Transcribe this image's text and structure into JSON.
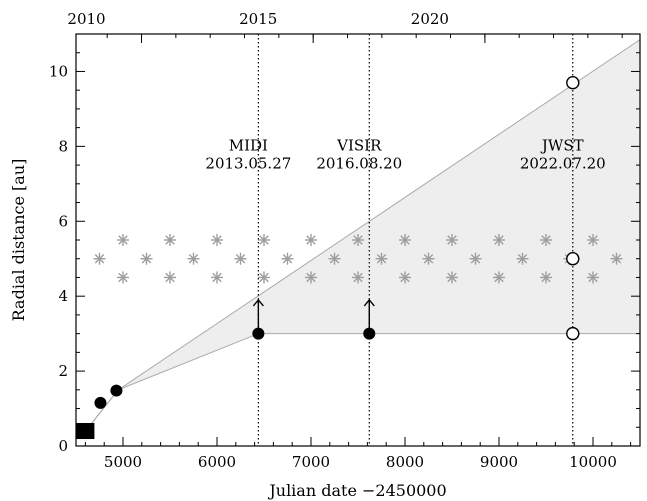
{
  "chart_data": {
    "type": "scatter",
    "xlabel": "Julian date −2450000",
    "ylabel": "Radial distance [au]",
    "xlim": [
      4500,
      10500
    ],
    "ylim": [
      0,
      11
    ],
    "x_ticks": [
      {
        "value": 5000,
        "label": "5000"
      },
      {
        "value": 6000,
        "label": "6000"
      },
      {
        "value": 7000,
        "label": "7000"
      },
      {
        "value": 8000,
        "label": "8000"
      },
      {
        "value": 9000,
        "label": "9000"
      },
      {
        "value": 10000,
        "label": "10000"
      }
    ],
    "y_ticks": [
      {
        "value": 0,
        "label": "0"
      },
      {
        "value": 2,
        "label": "2"
      },
      {
        "value": 4,
        "label": "4"
      },
      {
        "value": 6,
        "label": "6"
      },
      {
        "value": 8,
        "label": "8"
      },
      {
        "value": 10,
        "label": "10"
      }
    ],
    "top_axis_ticks": [
      {
        "value": 5197,
        "label": "2010"
      },
      {
        "value": 7023,
        "label": "2015"
      },
      {
        "value": 8850,
        "label": "2020"
      }
    ],
    "shaded_region": {
      "upper": [
        [
          4600,
          0.4
        ],
        [
          4950,
          1.5
        ],
        [
          10500,
          10.85
        ]
      ],
      "lower": [
        [
          4600,
          0.4
        ],
        [
          4950,
          1.5
        ],
        [
          6440,
          3.0
        ],
        [
          10500,
          3.0
        ]
      ],
      "fill": "#eeeeee",
      "edge": "#a9a9a9"
    },
    "filled_points": [
      {
        "x": 4760,
        "y": 1.15
      },
      {
        "x": 4930,
        "y": 1.48
      },
      {
        "x": 6440,
        "y": 3.0
      },
      {
        "x": 7620,
        "y": 3.0
      }
    ],
    "square_points": [
      {
        "x": 4600,
        "y": 0.4
      }
    ],
    "open_points": [
      {
        "x": 9785,
        "y": 9.7
      },
      {
        "x": 9785,
        "y": 5.0
      },
      {
        "x": 9785,
        "y": 3.0
      }
    ],
    "star_points": [
      {
        "x": 4750,
        "y": 5.0
      },
      {
        "x": 5000,
        "y": 5.5
      },
      {
        "x": 5000,
        "y": 4.5
      },
      {
        "x": 5250,
        "y": 5.0
      },
      {
        "x": 5500,
        "y": 5.5
      },
      {
        "x": 5500,
        "y": 4.5
      },
      {
        "x": 5750,
        "y": 5.0
      },
      {
        "x": 6000,
        "y": 5.5
      },
      {
        "x": 6000,
        "y": 4.5
      },
      {
        "x": 6250,
        "y": 5.0
      },
      {
        "x": 6500,
        "y": 5.5
      },
      {
        "x": 6500,
        "y": 4.5
      },
      {
        "x": 6750,
        "y": 5.0
      },
      {
        "x": 7000,
        "y": 5.5
      },
      {
        "x": 7000,
        "y": 4.5
      },
      {
        "x": 7250,
        "y": 5.0
      },
      {
        "x": 7500,
        "y": 5.5
      },
      {
        "x": 7500,
        "y": 4.5
      },
      {
        "x": 7750,
        "y": 5.0
      },
      {
        "x": 8000,
        "y": 5.5
      },
      {
        "x": 8000,
        "y": 4.5
      },
      {
        "x": 8250,
        "y": 5.0
      },
      {
        "x": 8500,
        "y": 5.5
      },
      {
        "x": 8500,
        "y": 4.5
      },
      {
        "x": 8750,
        "y": 5.0
      },
      {
        "x": 9000,
        "y": 5.5
      },
      {
        "x": 9000,
        "y": 4.5
      },
      {
        "x": 9250,
        "y": 5.0
      },
      {
        "x": 9500,
        "y": 5.5
      },
      {
        "x": 9500,
        "y": 4.5
      },
      {
        "x": 9750,
        "y": 5.0
      },
      {
        "x": 10000,
        "y": 5.5
      },
      {
        "x": 10000,
        "y": 4.5
      },
      {
        "x": 10250,
        "y": 5.0
      }
    ],
    "lower_limit_arrows": [
      {
        "x": 6440,
        "y_from": 3.15,
        "y_to": 3.9
      },
      {
        "x": 7620,
        "y_from": 3.15,
        "y_to": 3.9
      }
    ],
    "epochs": [
      {
        "x": 6440,
        "name": "MIDI",
        "date": "2013.05.27",
        "label_y": 8.0
      },
      {
        "x": 7620,
        "name": "VISIR",
        "date": "2016.08.20",
        "label_y": 8.0
      },
      {
        "x": 9785,
        "name": "JWST",
        "date": "2022.07.20",
        "label_y": 8.0
      }
    ],
    "colors": {
      "points": "#000000",
      "stars": "#9e9e9e",
      "shade": "#eeeeee",
      "shade_edge": "#a9a9a9"
    }
  }
}
